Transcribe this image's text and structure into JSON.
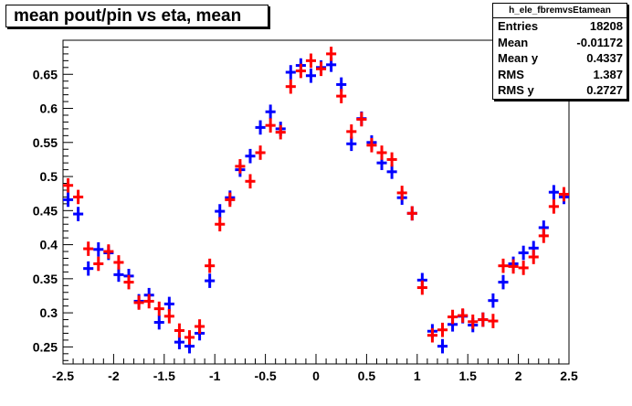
{
  "chart_data": {
    "type": "scatter",
    "title": "mean pout/pin vs eta, mean",
    "xlim": [
      -2.5,
      2.5
    ],
    "ylim": [
      0.225,
      0.7
    ],
    "x_ticks": [
      "-2.5",
      "-2",
      "-1.5",
      "-1",
      "-0.5",
      "0",
      "0.5",
      "1",
      "1.5",
      "2",
      "2.5"
    ],
    "y_ticks": [
      "0.25",
      "0.3",
      "0.35",
      "0.4",
      "0.45",
      "0.5",
      "0.55",
      "0.6",
      "0.65"
    ],
    "grid": false,
    "stats": {
      "name": "h_ele_fbremvsEtamean",
      "rows": [
        {
          "label": "Entries",
          "value": "18208"
        },
        {
          "label": "Mean",
          "value": "-0.01172"
        },
        {
          "label": "Mean y",
          "value": "0.4337"
        },
        {
          "label": "RMS",
          "value": "1.387"
        },
        {
          "label": "RMS y",
          "value": "0.2727"
        }
      ]
    },
    "series": [
      {
        "color": "#0000ff",
        "x": [
          -2.45,
          -2.35,
          -2.25,
          -2.15,
          -2.05,
          -1.95,
          -1.85,
          -1.75,
          -1.65,
          -1.55,
          -1.45,
          -1.35,
          -1.25,
          -1.15,
          -1.05,
          -0.95,
          -0.85,
          -0.75,
          -0.65,
          -0.55,
          -0.45,
          -0.35,
          -0.25,
          -0.15,
          -0.05,
          0.05,
          0.15,
          0.25,
          0.35,
          0.45,
          0.55,
          0.65,
          0.75,
          0.85,
          0.95,
          1.05,
          1.15,
          1.25,
          1.35,
          1.45,
          1.55,
          1.65,
          1.75,
          1.85,
          1.95,
          2.05,
          2.15,
          2.25,
          2.35,
          2.45
        ],
        "y": [
          0.466,
          0.445,
          0.365,
          0.393,
          0.388,
          0.356,
          0.354,
          0.317,
          0.326,
          0.286,
          0.313,
          0.257,
          0.251,
          0.27,
          0.347,
          0.449,
          0.469,
          0.51,
          0.53,
          0.572,
          0.595,
          0.57,
          0.653,
          0.663,
          0.648,
          0.66,
          0.664,
          0.635,
          0.548,
          0.585,
          0.55,
          0.52,
          0.507,
          0.469,
          0.446,
          0.348,
          0.273,
          0.251,
          0.283,
          0.295,
          0.282,
          0.29,
          0.318,
          0.345,
          0.372,
          0.388,
          0.395,
          0.425,
          0.477,
          0.47
        ]
      },
      {
        "color": "#ff0000",
        "x": [
          -2.45,
          -2.35,
          -2.25,
          -2.15,
          -2.05,
          -1.95,
          -1.85,
          -1.75,
          -1.65,
          -1.55,
          -1.45,
          -1.35,
          -1.25,
          -1.15,
          -1.05,
          -0.95,
          -0.85,
          -0.75,
          -0.65,
          -0.55,
          -0.45,
          -0.35,
          -0.25,
          -0.15,
          -0.05,
          0.05,
          0.15,
          0.25,
          0.35,
          0.45,
          0.55,
          0.65,
          0.75,
          0.85,
          0.95,
          1.05,
          1.15,
          1.25,
          1.35,
          1.45,
          1.55,
          1.65,
          1.75,
          1.85,
          1.95,
          2.05,
          2.15,
          2.25,
          2.35,
          2.45
        ],
        "y": [
          0.487,
          0.47,
          0.394,
          0.372,
          0.39,
          0.374,
          0.345,
          0.315,
          0.317,
          0.306,
          0.295,
          0.274,
          0.264,
          0.28,
          0.369,
          0.43,
          0.466,
          0.515,
          0.493,
          0.535,
          0.575,
          0.565,
          0.632,
          0.655,
          0.67,
          0.658,
          0.68,
          0.618,
          0.566,
          0.584,
          0.546,
          0.535,
          0.525,
          0.476,
          0.446,
          0.337,
          0.267,
          0.275,
          0.294,
          0.296,
          0.287,
          0.29,
          0.288,
          0.369,
          0.368,
          0.366,
          0.382,
          0.413,
          0.456,
          0.474
        ]
      }
    ]
  }
}
